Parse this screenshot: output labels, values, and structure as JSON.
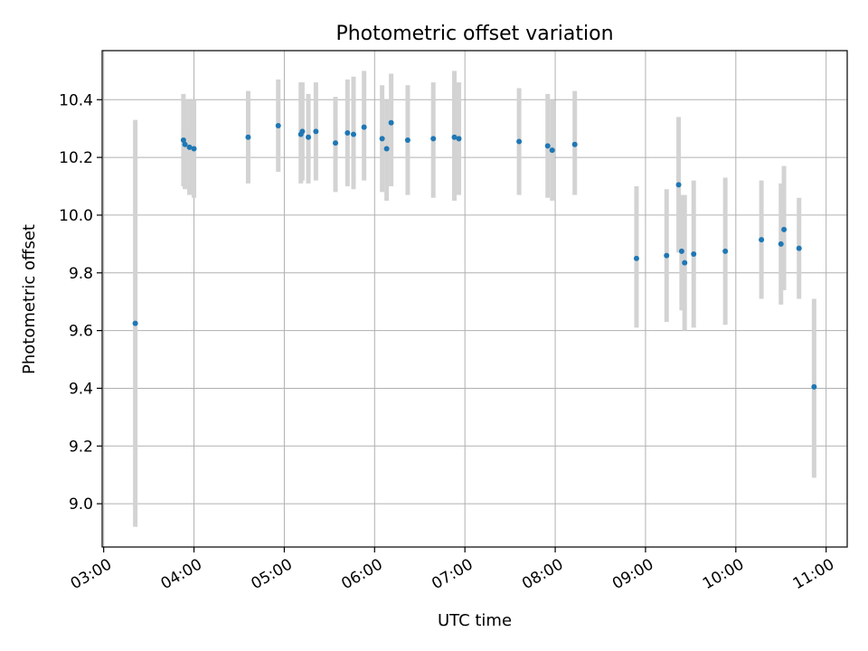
{
  "chart_data": {
    "type": "scatter",
    "title": "Photometric offset variation",
    "xlabel": "UTC time",
    "ylabel": "Photometric offset",
    "x_ticks": [
      "03:00",
      "04:00",
      "05:00",
      "06:00",
      "07:00",
      "08:00",
      "09:00",
      "10:00",
      "11:00"
    ],
    "y_ticks": [
      "9.0",
      "9.2",
      "9.4",
      "9.6",
      "9.8",
      "10.0",
      "10.2",
      "10.4"
    ],
    "xlim": [
      "02:59",
      "11:14"
    ],
    "ylim": [
      8.85,
      10.57
    ],
    "grid": true,
    "colors": {
      "point": "#1f77b4",
      "errorbar": "#d3d3d3",
      "grid": "#b0b0b0"
    },
    "points": [
      {
        "x": "03:21",
        "y": 9.625,
        "lo": 8.92,
        "hi": 10.33
      },
      {
        "x": "03:53",
        "y": 10.26,
        "lo": 10.1,
        "hi": 10.42
      },
      {
        "x": "03:54",
        "y": 10.245,
        "lo": 10.09,
        "hi": 10.4
      },
      {
        "x": "03:57",
        "y": 10.235,
        "lo": 10.07,
        "hi": 10.4
      },
      {
        "x": "04:00",
        "y": 10.23,
        "lo": 10.06,
        "hi": 10.4
      },
      {
        "x": "04:36",
        "y": 10.27,
        "lo": 10.11,
        "hi": 10.43
      },
      {
        "x": "04:56",
        "y": 10.31,
        "lo": 10.15,
        "hi": 10.47
      },
      {
        "x": "05:11",
        "y": 10.28,
        "lo": 10.11,
        "hi": 10.46
      },
      {
        "x": "05:12",
        "y": 10.29,
        "lo": 10.12,
        "hi": 10.46
      },
      {
        "x": "05:16",
        "y": 10.27,
        "lo": 10.11,
        "hi": 10.42
      },
      {
        "x": "05:21",
        "y": 10.29,
        "lo": 10.12,
        "hi": 10.46
      },
      {
        "x": "05:34",
        "y": 10.25,
        "lo": 10.08,
        "hi": 10.41
      },
      {
        "x": "05:42",
        "y": 10.285,
        "lo": 10.1,
        "hi": 10.47
      },
      {
        "x": "05:46",
        "y": 10.28,
        "lo": 10.09,
        "hi": 10.48
      },
      {
        "x": "05:53",
        "y": 10.305,
        "lo": 10.12,
        "hi": 10.5
      },
      {
        "x": "06:05",
        "y": 10.265,
        "lo": 10.08,
        "hi": 10.45
      },
      {
        "x": "06:08",
        "y": 10.23,
        "lo": 10.05,
        "hi": 10.4
      },
      {
        "x": "06:11",
        "y": 10.32,
        "lo": 10.1,
        "hi": 10.49
      },
      {
        "x": "06:22",
        "y": 10.26,
        "lo": 10.07,
        "hi": 10.45
      },
      {
        "x": "06:39",
        "y": 10.265,
        "lo": 10.06,
        "hi": 10.46
      },
      {
        "x": "06:53",
        "y": 10.27,
        "lo": 10.05,
        "hi": 10.5
      },
      {
        "x": "06:56",
        "y": 10.265,
        "lo": 10.07,
        "hi": 10.46
      },
      {
        "x": "07:36",
        "y": 10.255,
        "lo": 10.07,
        "hi": 10.44
      },
      {
        "x": "07:55",
        "y": 10.24,
        "lo": 10.06,
        "hi": 10.42
      },
      {
        "x": "07:58",
        "y": 10.225,
        "lo": 10.05,
        "hi": 10.4
      },
      {
        "x": "08:13",
        "y": 10.245,
        "lo": 10.07,
        "hi": 10.43
      },
      {
        "x": "08:54",
        "y": 9.85,
        "lo": 9.61,
        "hi": 10.1
      },
      {
        "x": "09:14",
        "y": 9.86,
        "lo": 9.63,
        "hi": 10.09
      },
      {
        "x": "09:22",
        "y": 10.105,
        "lo": 9.87,
        "hi": 10.34
      },
      {
        "x": "09:24",
        "y": 9.875,
        "lo": 9.67,
        "hi": 10.07
      },
      {
        "x": "09:26",
        "y": 9.835,
        "lo": 9.6,
        "hi": 10.07
      },
      {
        "x": "09:32",
        "y": 9.865,
        "lo": 9.61,
        "hi": 10.12
      },
      {
        "x": "09:53",
        "y": 9.875,
        "lo": 9.62,
        "hi": 10.13
      },
      {
        "x": "10:17",
        "y": 9.915,
        "lo": 9.71,
        "hi": 10.12
      },
      {
        "x": "10:30",
        "y": 9.9,
        "lo": 9.69,
        "hi": 10.11
      },
      {
        "x": "10:32",
        "y": 9.95,
        "lo": 9.74,
        "hi": 10.17
      },
      {
        "x": "10:42",
        "y": 9.885,
        "lo": 9.71,
        "hi": 10.06
      },
      {
        "x": "10:52",
        "y": 9.405,
        "lo": 9.09,
        "hi": 9.71
      }
    ]
  }
}
